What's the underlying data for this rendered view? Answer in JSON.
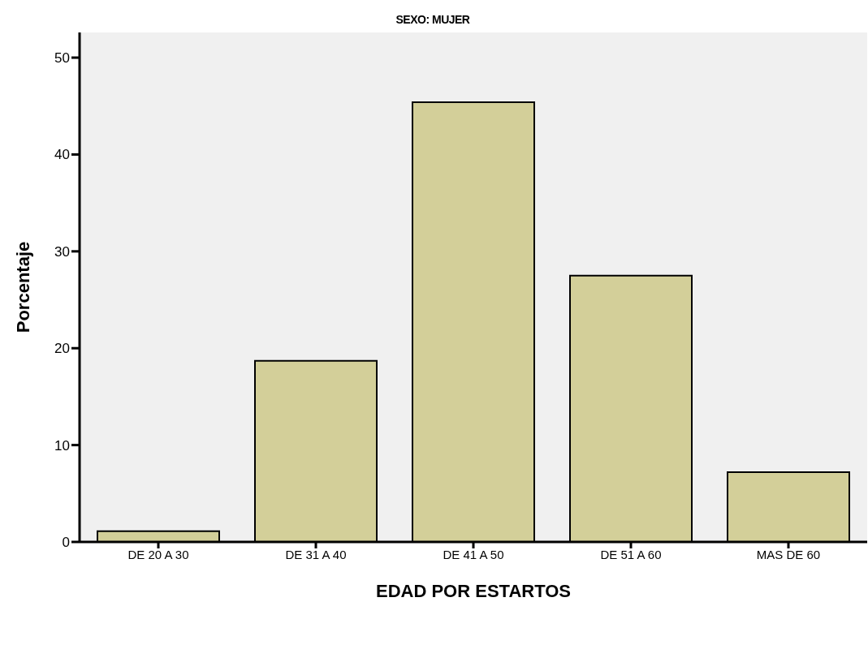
{
  "chart_data": {
    "type": "bar",
    "title": "SEXO: MUJER",
    "xlabel": "EDAD POR ESTARTOS",
    "ylabel": "Porcentaje",
    "categories": [
      "DE 20 A 30",
      "DE 31 A 40",
      "DE 41 A 50",
      "DE 51 A 60",
      "MAS DE 60"
    ],
    "values": [
      1.1,
      18.7,
      45.4,
      27.5,
      7.2
    ],
    "color": "#d3cf99",
    "ylim": [
      0,
      52.6
    ],
    "yticks": [
      0,
      10,
      20,
      30,
      40,
      50
    ],
    "grid": false,
    "legend": false
  }
}
